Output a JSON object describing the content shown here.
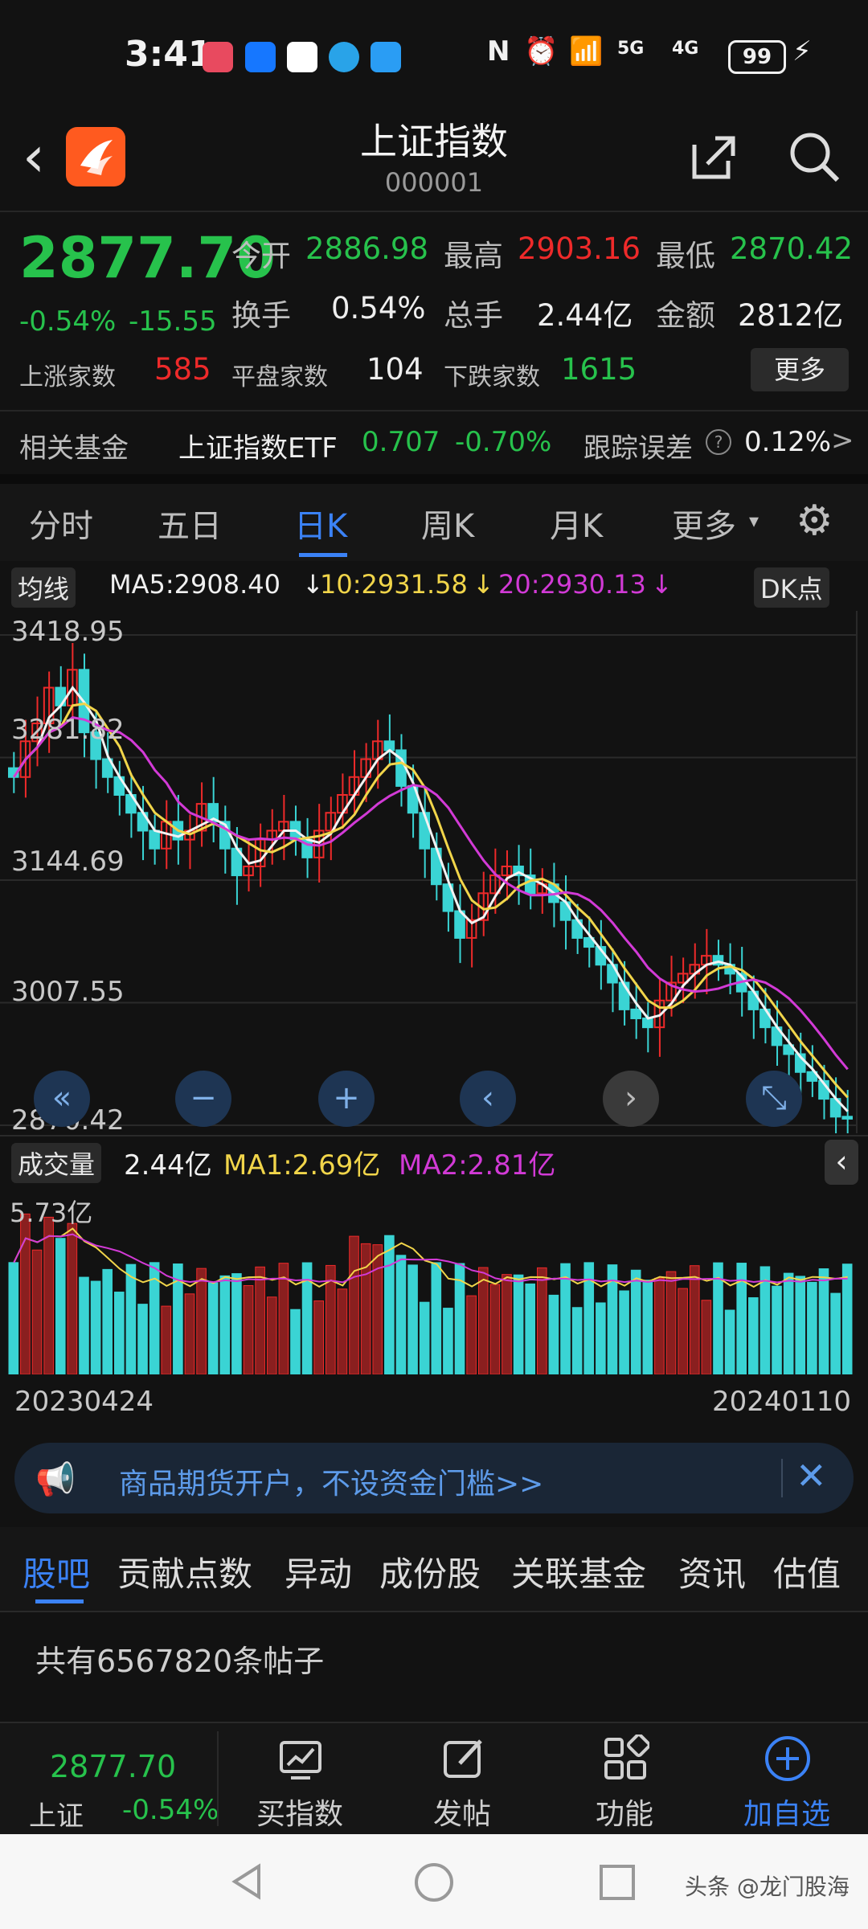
{
  "status_bar": {
    "time": "3:41",
    "battery": "99",
    "network_a": "5G",
    "network_b": "4G"
  },
  "header": {
    "back_icon": "chevron-left-icon",
    "title": "上证指数",
    "code": "000001"
  },
  "quote": {
    "price": "2877.70",
    "change_pct": "-0.54%",
    "change_abs": "-15.55",
    "open_label": "今开",
    "open": "2886.98",
    "high_label": "最高",
    "high": "2903.16",
    "low_label": "最低",
    "low": "2870.42",
    "turnover_label": "换手",
    "turnover": "0.54%",
    "volume_label": "总手",
    "volume": "2.44亿",
    "amount_label": "金额",
    "amount": "2812亿",
    "up_label": "上涨家数",
    "up": "585",
    "flat_label": "平盘家数",
    "flat": "104",
    "down_label": "下跌家数",
    "down": "1615",
    "more_label": "更多"
  },
  "fund": {
    "label": "相关基金",
    "name": "上证指数ETF",
    "price": "0.707",
    "change": "-0.70%",
    "error_label": "跟踪误差",
    "error": "0.12%",
    "chevron": ">"
  },
  "chart_tabs": [
    "分时",
    "五日",
    "日K",
    "周K",
    "月K",
    "更多"
  ],
  "active_chart_tab": 2,
  "ma_legend": {
    "button": "均线",
    "ma5": "MA5:2908.40",
    "ma10": "10:2931.58",
    "ma20": "20:2930.13",
    "dk_label": "DK点"
  },
  "price_axis": [
    "3418.95",
    "3281.82",
    "3144.69",
    "3007.55",
    "2870.42"
  ],
  "volume_legend": {
    "button": "成交量",
    "value": "2.44亿",
    "ma1": "MA1:2.69亿",
    "ma2": "MA2:2.81亿",
    "max": "5.73亿"
  },
  "dates": {
    "start": "20230424",
    "end": "20240110"
  },
  "colors": {
    "up": "#ee2a2a",
    "down": "#3ad4d4",
    "ma5": "#f2f2f2",
    "ma10": "#f1d54a",
    "ma20": "#d23ad6",
    "accent": "#3b82f6"
  },
  "chart_data": {
    "type": "candlestick",
    "ylim": [
      2870.42,
      3418.95
    ],
    "close_series": [
      3260,
      3300,
      3320,
      3360,
      3340,
      3380,
      3310,
      3280,
      3260,
      3240,
      3220,
      3200,
      3180,
      3210,
      3190,
      3200,
      3230,
      3210,
      3180,
      3150,
      3160,
      3190,
      3200,
      3210,
      3190,
      3170,
      3200,
      3220,
      3240,
      3260,
      3280,
      3300,
      3290,
      3250,
      3220,
      3180,
      3140,
      3110,
      3080,
      3100,
      3130,
      3150,
      3160,
      3150,
      3130,
      3140,
      3120,
      3100,
      3080,
      3070,
      3050,
      3030,
      3000,
      2990,
      2980,
      3010,
      3030,
      3040,
      3050,
      3060,
      3050,
      3040,
      3020,
      3000,
      2980,
      2960,
      2950,
      2930,
      2920,
      2900,
      2880,
      2877.7
    ]
  },
  "banner": {
    "icon": "megaphone-icon",
    "text": "商品期货开户，不设资金门槛>>",
    "close_icon": "close-icon"
  },
  "bottom_tabs": [
    "股吧",
    "贡献点数",
    "异动",
    "成份股",
    "关联基金",
    "资讯",
    "估值"
  ],
  "post_count": "共有6567820条帖子",
  "bottom_nav": {
    "mini_price": "2877.70",
    "mini_name": "上证",
    "mini_change": "-0.54%",
    "items": [
      {
        "label": "买指数",
        "icon": "chart-icon"
      },
      {
        "label": "发帖",
        "icon": "edit-icon"
      },
      {
        "label": "功能",
        "icon": "grid-icon"
      },
      {
        "label": "加自选",
        "icon": "plus-circle-icon"
      }
    ]
  },
  "watermark": "头条 @龙门股海"
}
